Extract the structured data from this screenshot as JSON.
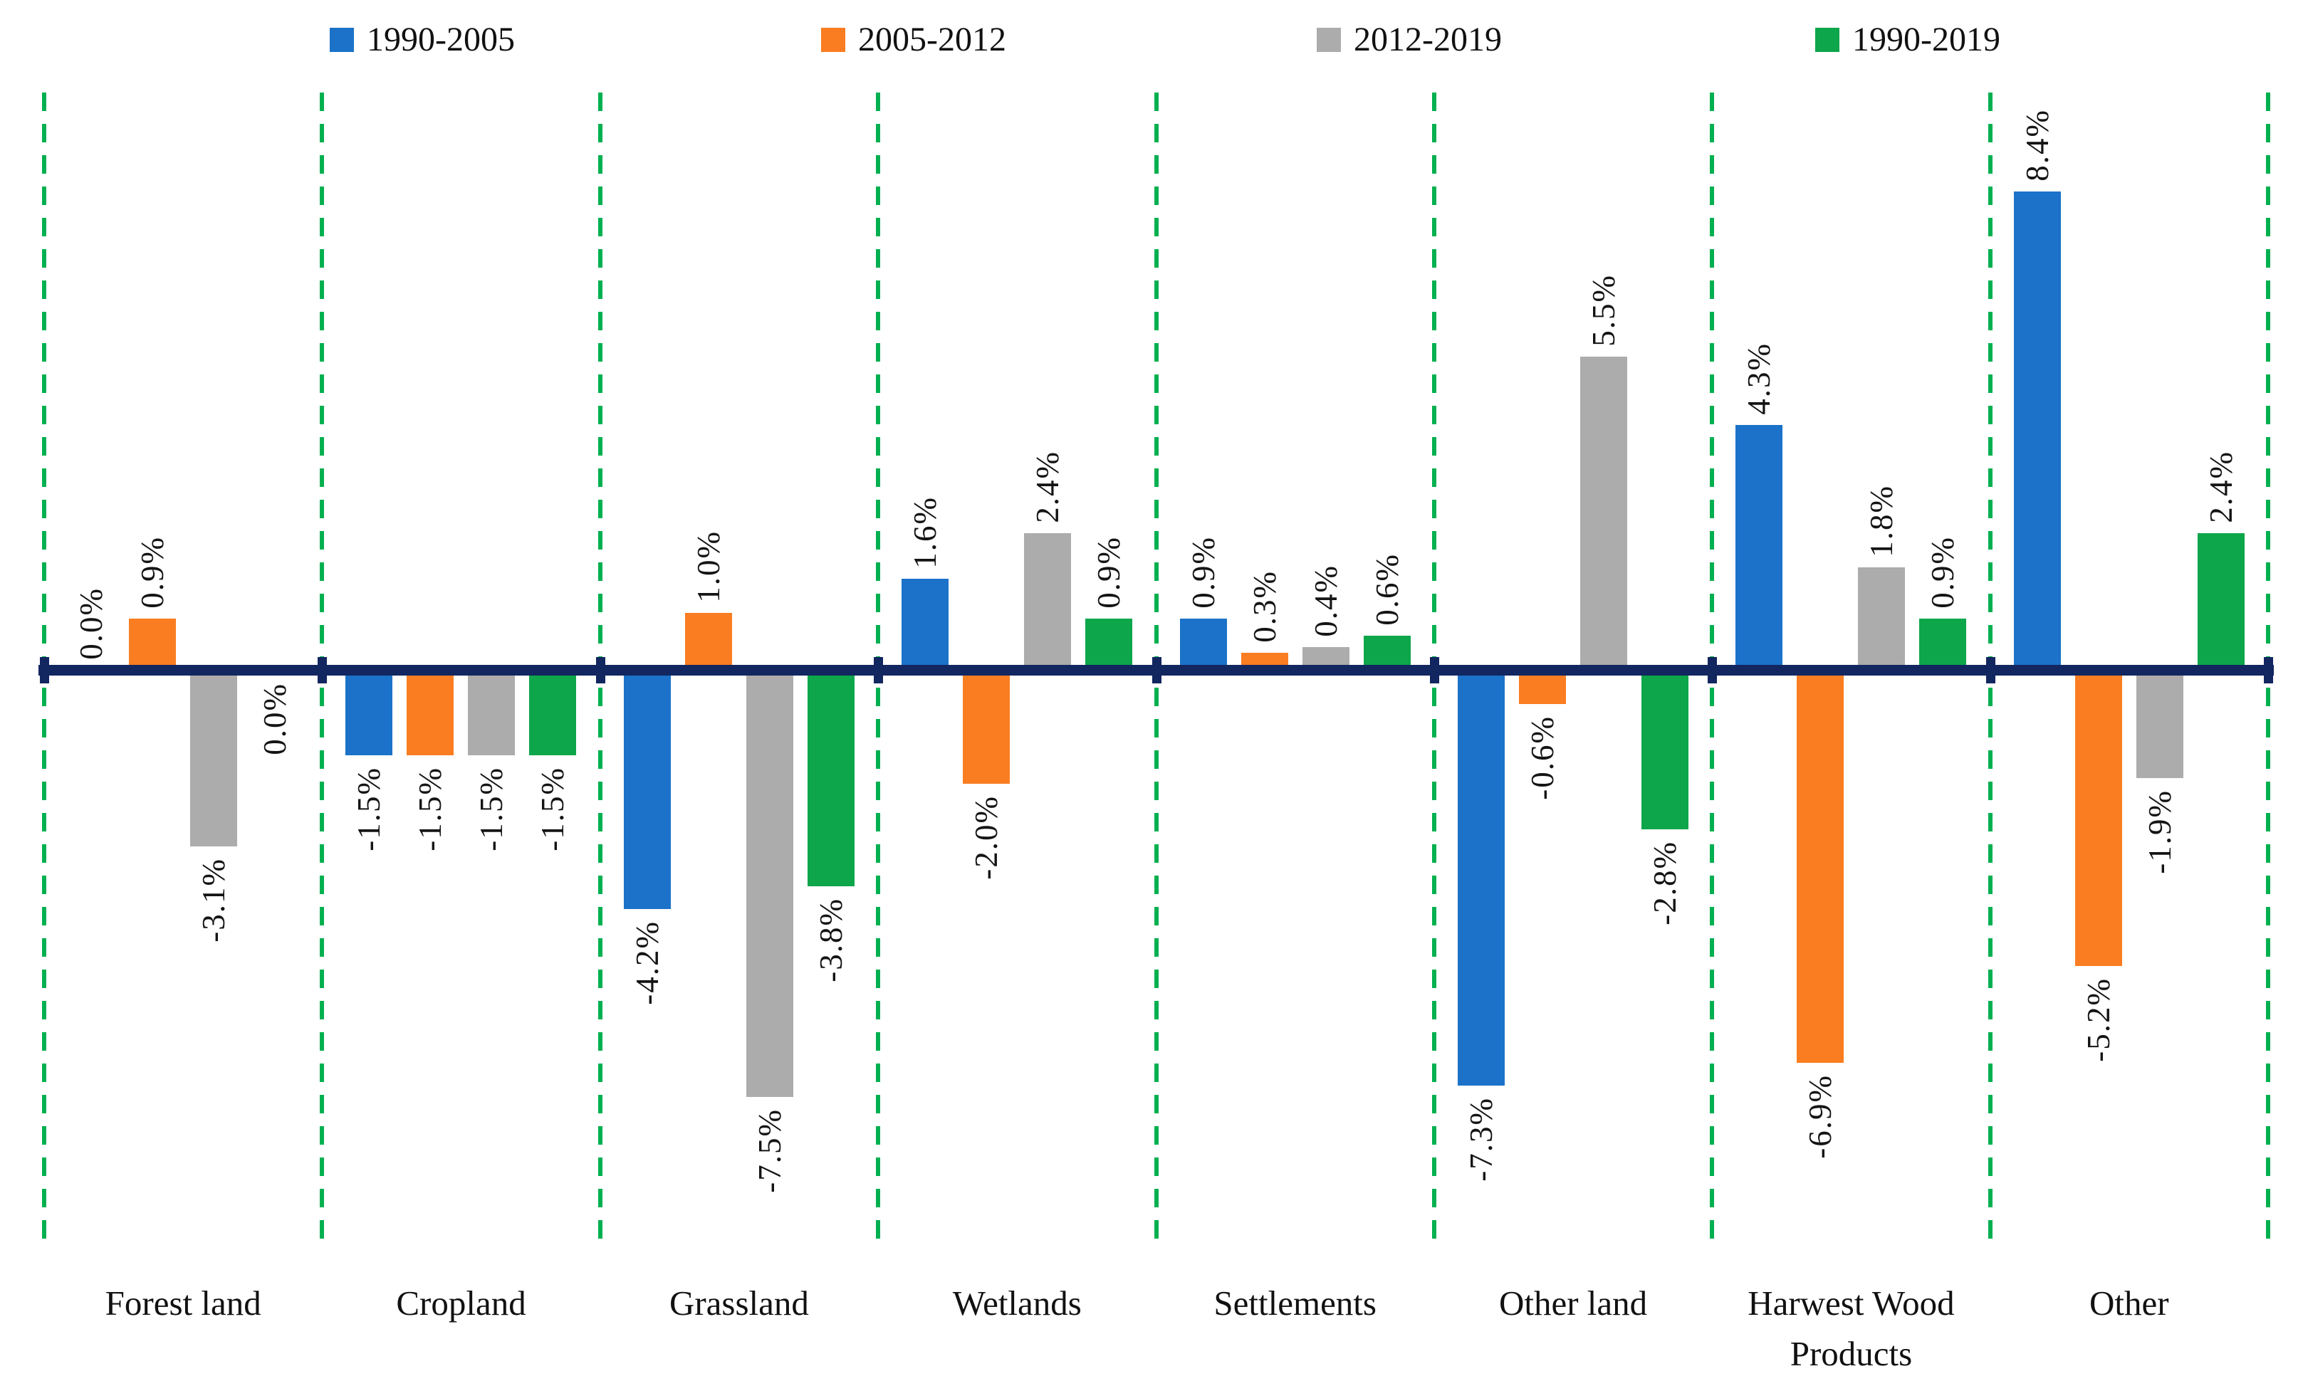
{
  "chart_data": {
    "type": "bar",
    "categories": [
      "Forest land",
      "Cropland",
      "Grassland",
      "Wetlands",
      "Settlements",
      "Other land",
      "Harwest Wood Products",
      "Other"
    ],
    "series": [
      {
        "name": "1990-2005",
        "color": "#1B72C8",
        "values": [
          0.0,
          -1.5,
          -4.2,
          1.6,
          0.9,
          -7.3,
          4.3,
          8.4
        ]
      },
      {
        "name": "2005-2012",
        "color": "#FA7D21",
        "values": [
          0.9,
          -1.5,
          1.0,
          -2.0,
          0.3,
          -0.6,
          -6.9,
          -5.2
        ]
      },
      {
        "name": "2012-2019",
        "color": "#ACACAC",
        "values": [
          -3.1,
          -1.5,
          -7.5,
          2.4,
          0.4,
          5.5,
          1.8,
          -1.9
        ]
      },
      {
        "name": "1990-2019",
        "color": "#0DA64B",
        "values": [
          0.0,
          -1.5,
          -3.8,
          0.9,
          0.6,
          -2.8,
          0.9,
          2.4
        ]
      }
    ],
    "value_suffix": "%",
    "title": "",
    "xlabel": "",
    "ylabel": "",
    "ylim": [
      -7.5,
      8.4
    ],
    "grid": "off",
    "legend_position": "top",
    "axis_color": "#12265F",
    "separator_color": "#00B050",
    "label_color": "#141414"
  }
}
